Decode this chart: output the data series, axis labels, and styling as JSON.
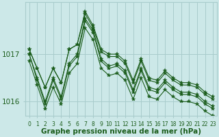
{
  "title": "Graphe pression niveau de la mer (hPa)",
  "background_color": "#cce8e8",
  "grid_color": "#a8cccc",
  "line_color": "#1a5c1a",
  "marker_color": "#1a5c1a",
  "xlim": [
    -0.5,
    23.5
  ],
  "ylim": [
    1015.7,
    1018.1
  ],
  "yticks": [
    1016,
    1017
  ],
  "xtick_labels": [
    "0",
    "1",
    "2",
    "3",
    "4",
    "5",
    "6",
    "7",
    "8",
    "9",
    "10",
    "11",
    "12",
    "13",
    "14",
    "15",
    "16",
    "17",
    "18",
    "19",
    "20",
    "21",
    "22",
    "23"
  ],
  "series": [
    [
      1017.1,
      1016.7,
      1016.3,
      1016.7,
      1016.4,
      1017.1,
      1017.2,
      1017.9,
      1017.6,
      1017.1,
      1017.0,
      1017.0,
      1016.85,
      1016.45,
      1016.9,
      1016.5,
      1016.45,
      1016.65,
      1016.5,
      1016.4,
      1016.4,
      1016.35,
      1016.2,
      1016.1
    ],
    [
      1017.1,
      1016.7,
      1016.3,
      1016.7,
      1016.4,
      1017.1,
      1017.2,
      1017.85,
      1017.55,
      1017.05,
      1016.95,
      1016.95,
      1016.8,
      1016.4,
      1016.85,
      1016.45,
      1016.4,
      1016.6,
      1016.45,
      1016.35,
      1016.35,
      1016.3,
      1016.15,
      1016.05
    ],
    [
      1017.0,
      1016.5,
      1016.0,
      1016.5,
      1016.1,
      1016.8,
      1017.0,
      1017.75,
      1017.5,
      1016.9,
      1016.75,
      1016.8,
      1016.65,
      1016.25,
      1016.7,
      1016.3,
      1016.25,
      1016.45,
      1016.3,
      1016.2,
      1016.2,
      1016.15,
      1016.0,
      1015.9
    ],
    [
      1017.0,
      1016.45,
      1015.95,
      1016.45,
      1016.05,
      1016.75,
      1016.95,
      1017.7,
      1017.45,
      1016.85,
      1016.7,
      1016.75,
      1016.6,
      1016.2,
      1016.65,
      1016.25,
      1016.2,
      1016.4,
      1016.25,
      1016.15,
      1016.15,
      1016.1,
      1015.95,
      1015.85
    ],
    [
      1016.85,
      1016.35,
      1015.85,
      1016.3,
      1015.95,
      1016.6,
      1016.8,
      1017.55,
      1017.3,
      1016.7,
      1016.55,
      1016.6,
      1016.45,
      1016.05,
      1016.5,
      1016.1,
      1016.05,
      1016.25,
      1016.1,
      1016.0,
      1016.0,
      1015.95,
      1015.8,
      1015.7
    ]
  ],
  "ylabel_fontsize": 7.5,
  "xlabel_fontsize": 5.5,
  "title_fontsize": 7.5,
  "marker_size": 4,
  "linewidth": 0.8,
  "figsize": [
    3.2,
    2.0
  ],
  "dpi": 100
}
